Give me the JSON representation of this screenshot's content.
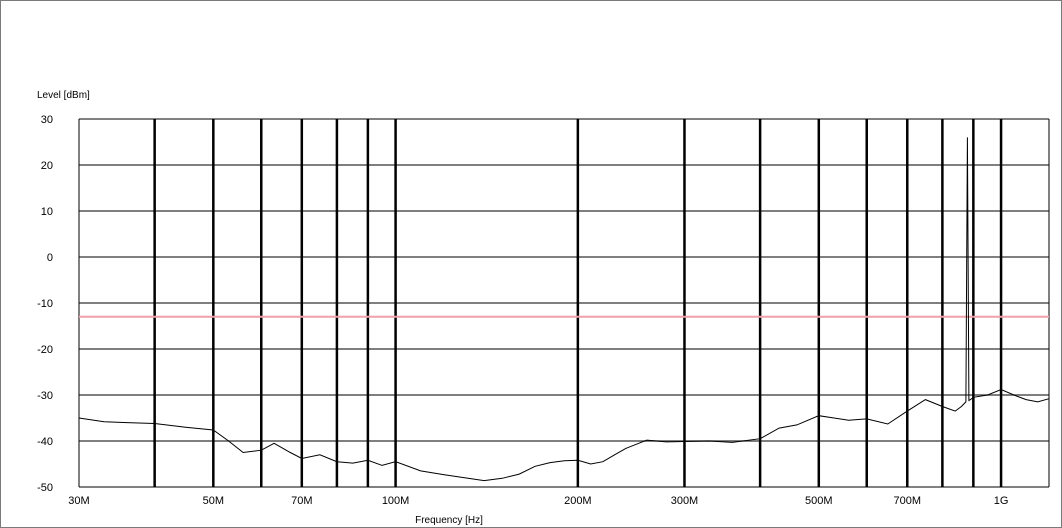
{
  "chart_data": {
    "type": "line",
    "title": "",
    "xlabel": "Frequency [Hz]",
    "ylabel": "Level [dBm]",
    "x_scale": "log",
    "xlim": [
      30000000,
      1200000000
    ],
    "ylim": [
      -50,
      30
    ],
    "grid": true,
    "y_ticks": [
      {
        "value": 30,
        "label": "30"
      },
      {
        "value": 20,
        "label": "20"
      },
      {
        "value": 10,
        "label": "10"
      },
      {
        "value": 0,
        "label": "0"
      },
      {
        "value": -10,
        "label": "-10"
      },
      {
        "value": -20,
        "label": "-20"
      },
      {
        "value": -30,
        "label": "-30"
      },
      {
        "value": -40,
        "label": "-40"
      },
      {
        "value": -50,
        "label": "-50"
      }
    ],
    "x_ticks": [
      {
        "value": 30000000,
        "label": "30M"
      },
      {
        "value": 50000000,
        "label": "50M"
      },
      {
        "value": 70000000,
        "label": "70M"
      },
      {
        "value": 100000000,
        "label": "100M"
      },
      {
        "value": 200000000,
        "label": "200M"
      },
      {
        "value": 300000000,
        "label": "300M"
      },
      {
        "value": 500000000,
        "label": "500M"
      },
      {
        "value": 700000000,
        "label": "700M"
      },
      {
        "value": 1000000000,
        "label": "1G"
      }
    ],
    "x_gridlines": [
      40000000,
      50000000,
      60000000,
      70000000,
      80000000,
      90000000,
      100000000,
      200000000,
      300000000,
      400000000,
      500000000,
      600000000,
      700000000,
      800000000,
      900000000,
      1000000000
    ],
    "limit_line": {
      "value": -13,
      "color": "#f0a0a8"
    },
    "line_color": "#000000",
    "series": [
      {
        "x": [
          30000000,
          33000000,
          36000000,
          40000000,
          45000000,
          50000000,
          53000000,
          56000000,
          60000000,
          63000000,
          67000000,
          70000000,
          75000000,
          80000000,
          85000000,
          90000000,
          95000000,
          100000000,
          110000000,
          120000000,
          130000000,
          140000000,
          150000000,
          160000000,
          170000000,
          180000000,
          190000000,
          200000000,
          210000000,
          220000000,
          230000000,
          240000000,
          260000000,
          280000000,
          300000000,
          330000000,
          360000000,
          400000000,
          430000000,
          460000000,
          500000000,
          530000000,
          560000000,
          600000000,
          650000000,
          700000000,
          750000000,
          800000000,
          840000000,
          860000000,
          875000000,
          880000000,
          885000000,
          890000000,
          900000000,
          950000000,
          1000000000,
          1050000000,
          1100000000,
          1150000000,
          1200000000
        ],
        "y": [
          -35,
          -35.8,
          -36,
          -36.2,
          -37,
          -37.6,
          -40,
          -42.5,
          -42,
          -40.5,
          -42.5,
          -43.8,
          -43,
          -44.5,
          -44.8,
          -44.2,
          -45.3,
          -44.5,
          -46.5,
          -47.3,
          -48,
          -48.6,
          -48.1,
          -47.2,
          -45.5,
          -44.7,
          -44.3,
          -44.2,
          -45,
          -44.5,
          -43,
          -41.6,
          -39.8,
          -40.2,
          -40.1,
          -40,
          -40.3,
          -39.5,
          -37.2,
          -36.5,
          -34.5,
          -35,
          -35.5,
          -35.2,
          -36.3,
          -33.5,
          -31,
          -32.5,
          -33.5,
          -32.5,
          -31.5,
          26,
          -31.2,
          -31,
          -30.5,
          -30,
          -28.8,
          -30,
          -31,
          -31.5,
          -30.8
        ]
      }
    ]
  }
}
